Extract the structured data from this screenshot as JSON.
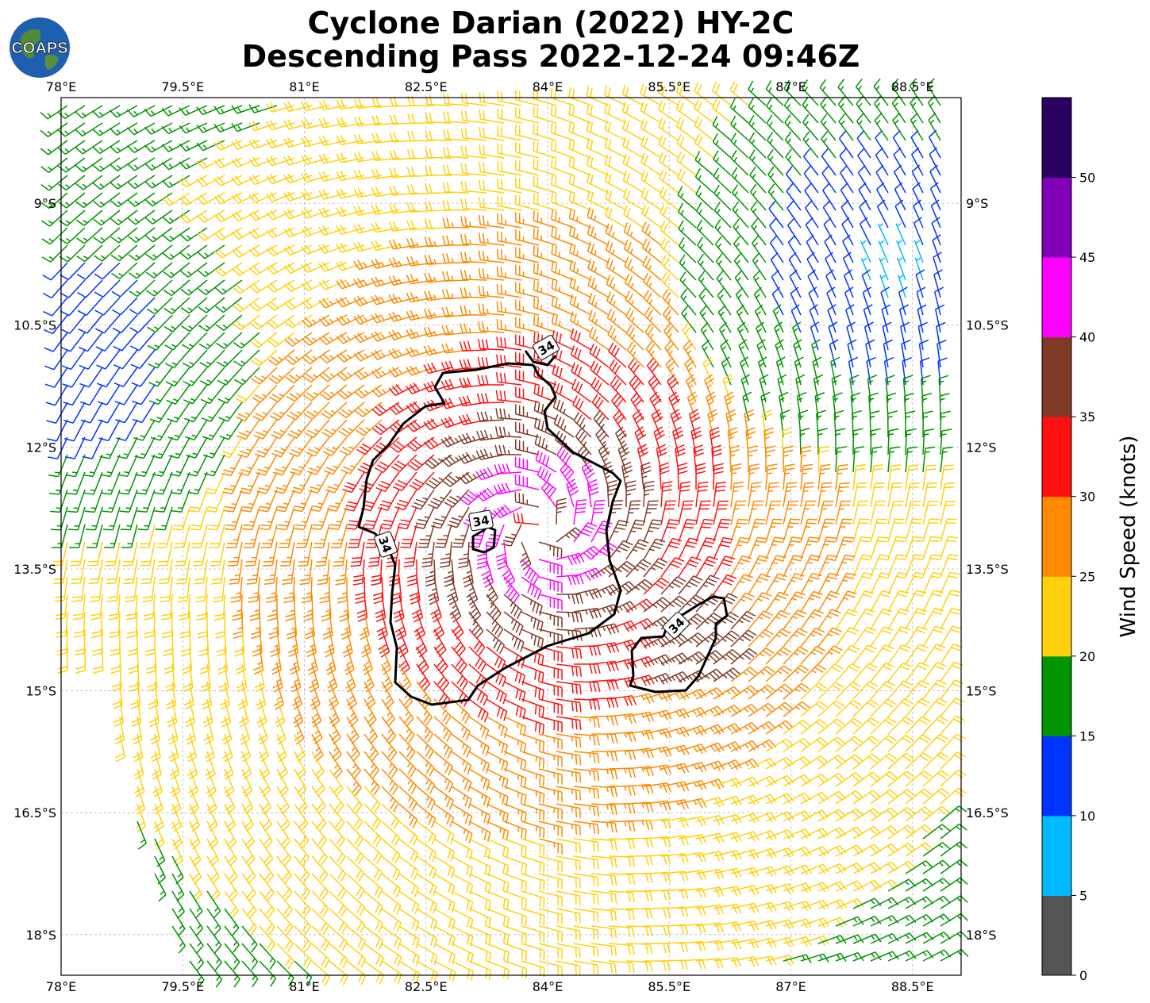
{
  "title_line1": "Cyclone Darian (2022) HY-2C",
  "title_line2": "Descending Pass 2022-12-24 09:46Z",
  "logo_text": "COAPS",
  "logo_icon": "globe-icon",
  "map": {
    "lon_range": [
      78.0,
      89.1
    ],
    "lat_range": [
      -18.5,
      -7.7
    ],
    "lon_ticks": [
      "78°E",
      "79.5°E",
      "81°E",
      "82.5°E",
      "84°E",
      "85.5°E",
      "87°E",
      "88.5°E"
    ],
    "lat_ticks": [
      "9°S",
      "10.5°S",
      "12°S",
      "13.5°S",
      "15°S",
      "16.5°S",
      "18°S"
    ],
    "grid": true,
    "center": {
      "lon": 83.9,
      "lat": -13.0
    },
    "contour_label": "34"
  },
  "colorbar": {
    "label": "Wind Speed (knots)",
    "ticks": [
      "0",
      "5",
      "10",
      "15",
      "20",
      "25",
      "30",
      "35",
      "40",
      "45",
      "50"
    ],
    "colors": [
      "#555555",
      "#00bbff",
      "#0033ff",
      "#009400",
      "#ffd10d",
      "#ff8a00",
      "#ff1010",
      "#7f3a26",
      "#ff00ff",
      "#8000b5",
      "#2a0060"
    ]
  }
}
